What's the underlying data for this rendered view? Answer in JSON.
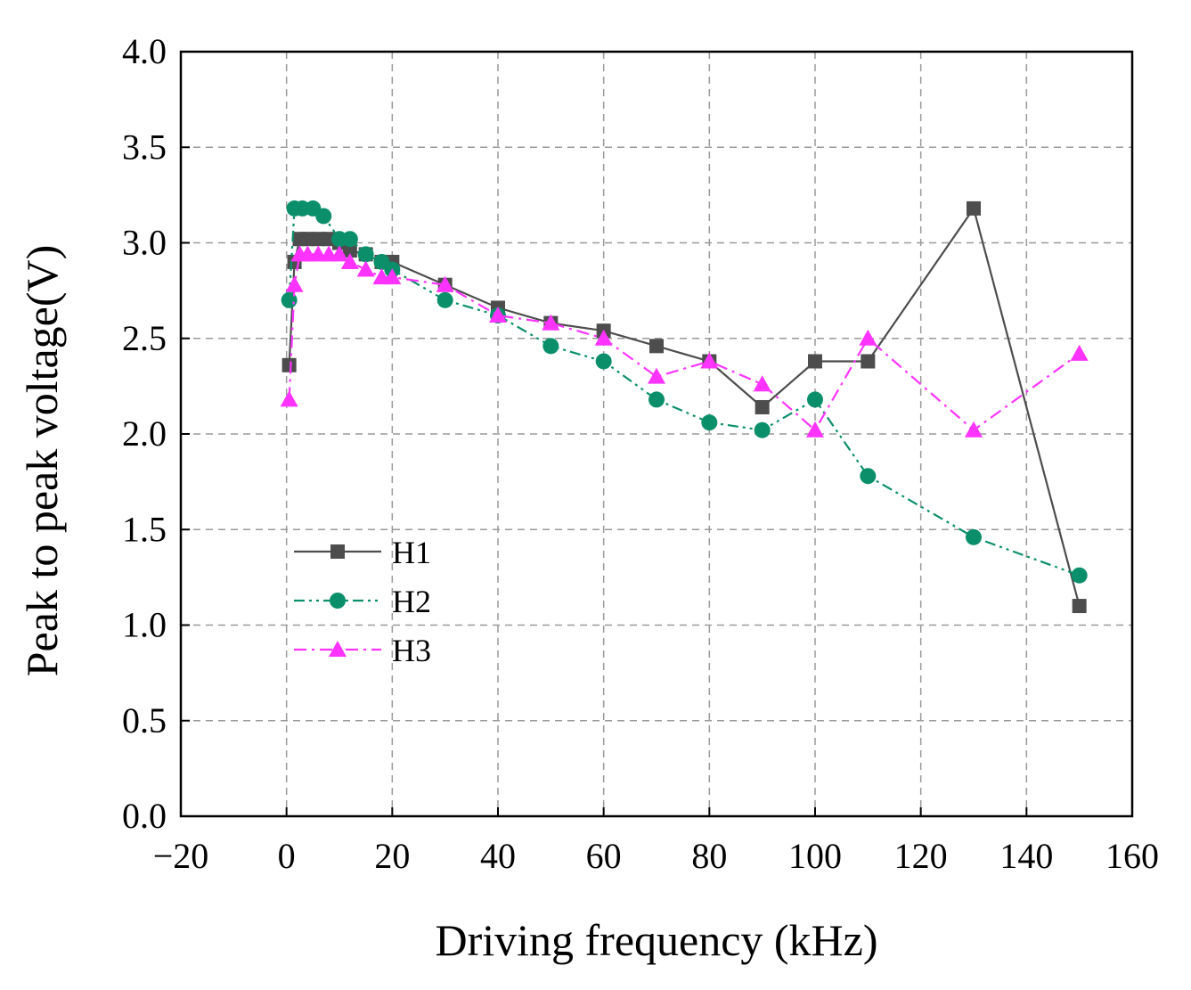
{
  "chart_data": {
    "type": "line",
    "title": "",
    "xlabel": "Driving frequency (kHz)",
    "ylabel": "Peak to peak voltage(V)",
    "xlim": [
      -20,
      160
    ],
    "ylim": [
      0.0,
      4.0
    ],
    "x_ticks": [
      -20,
      0,
      20,
      40,
      60,
      80,
      100,
      120,
      140,
      160
    ],
    "x_tick_labels": [
      "−20",
      "0",
      "20",
      "40",
      "60",
      "80",
      "100",
      "120",
      "140",
      "160"
    ],
    "y_ticks": [
      0.0,
      0.5,
      1.0,
      1.5,
      2.0,
      2.5,
      3.0,
      3.5,
      4.0
    ],
    "y_tick_labels": [
      "0.0",
      "0.5",
      "1.0",
      "1.5",
      "2.0",
      "2.5",
      "3.0",
      "3.5",
      "4.0"
    ],
    "grid": true,
    "legend_position": "middle-left",
    "series": [
      {
        "name": "H1",
        "color": "#4d4d4d",
        "marker": "square",
        "line_style": "solid",
        "x": [
          0.5,
          1.5,
          2.5,
          4,
          6,
          8,
          10,
          12,
          15,
          18,
          20,
          30,
          40,
          50,
          60,
          70,
          80,
          90,
          100,
          110,
          130,
          150
        ],
        "y": [
          2.36,
          2.9,
          3.02,
          3.02,
          3.02,
          3.02,
          3.0,
          2.96,
          2.94,
          2.9,
          2.9,
          2.78,
          2.66,
          2.58,
          2.54,
          2.46,
          2.38,
          2.14,
          2.38,
          2.38,
          3.18,
          1.1
        ]
      },
      {
        "name": "H2",
        "color": "#0b8f6b",
        "marker": "circle",
        "line_style": "dash-dot-dot",
        "x": [
          0.5,
          1.5,
          3,
          5,
          7,
          10,
          12,
          15,
          18,
          20,
          30,
          40,
          50,
          60,
          70,
          80,
          90,
          100,
          110,
          130,
          150
        ],
        "y": [
          2.7,
          3.18,
          3.18,
          3.18,
          3.14,
          3.02,
          3.02,
          2.94,
          2.9,
          2.86,
          2.7,
          2.62,
          2.46,
          2.38,
          2.18,
          2.06,
          2.02,
          2.18,
          1.78,
          1.46,
          1.26
        ]
      },
      {
        "name": "H3",
        "color": "#ff33ff",
        "marker": "triangle",
        "line_style": "dash-dot",
        "x": [
          0.5,
          1.5,
          2.5,
          4,
          6,
          8,
          10,
          12,
          15,
          18,
          20,
          30,
          40,
          50,
          60,
          70,
          80,
          90,
          100,
          110,
          130,
          150
        ],
        "y": [
          2.18,
          2.78,
          2.94,
          2.94,
          2.94,
          2.94,
          2.94,
          2.9,
          2.86,
          2.82,
          2.82,
          2.78,
          2.62,
          2.58,
          2.5,
          2.3,
          2.38,
          2.26,
          2.02,
          2.5,
          2.02,
          2.42
        ]
      }
    ]
  }
}
